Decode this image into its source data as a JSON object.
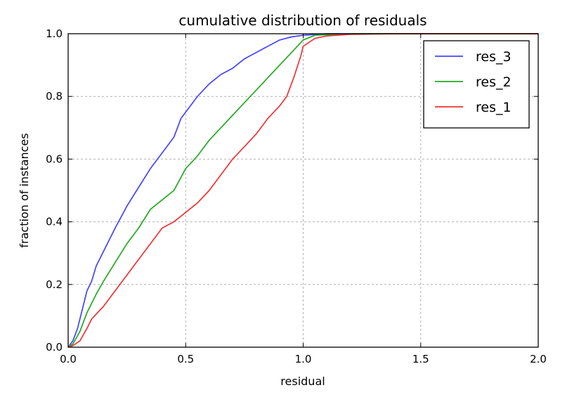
{
  "chart_data": {
    "type": "line",
    "title": "cumulative distribution of residuals",
    "xlabel": "residual",
    "ylabel": "fraction of instances",
    "xlim": [
      0.0,
      2.0
    ],
    "ylim": [
      0.0,
      1.0
    ],
    "xticks": [
      "0.0",
      "0.5",
      "1.0",
      "1.5",
      "2.0"
    ],
    "yticks": [
      "0.0",
      "0.2",
      "0.4",
      "0.6",
      "0.8",
      "1.0"
    ],
    "grid": true,
    "legend_position": "top-right",
    "series": [
      {
        "name": "res_3",
        "color": "#4444ff",
        "points": [
          [
            0,
            0
          ],
          [
            0.02,
            0.02
          ],
          [
            0.04,
            0.06
          ],
          [
            0.06,
            0.12
          ],
          [
            0.08,
            0.18
          ],
          [
            0.1,
            0.21
          ],
          [
            0.12,
            0.26
          ],
          [
            0.14,
            0.29
          ],
          [
            0.16,
            0.32
          ],
          [
            0.18,
            0.35
          ],
          [
            0.2,
            0.38
          ],
          [
            0.25,
            0.45
          ],
          [
            0.3,
            0.51
          ],
          [
            0.35,
            0.57
          ],
          [
            0.4,
            0.62
          ],
          [
            0.45,
            0.67
          ],
          [
            0.48,
            0.73
          ],
          [
            0.5,
            0.75
          ],
          [
            0.55,
            0.8
          ],
          [
            0.6,
            0.84
          ],
          [
            0.65,
            0.87
          ],
          [
            0.7,
            0.89
          ],
          [
            0.75,
            0.92
          ],
          [
            0.8,
            0.94
          ],
          [
            0.85,
            0.96
          ],
          [
            0.9,
            0.98
          ],
          [
            0.95,
            0.99
          ],
          [
            1.0,
            0.995
          ],
          [
            1.1,
            1.0
          ],
          [
            1.3,
            1.0
          ],
          [
            2.0,
            1.0
          ]
        ]
      },
      {
        "name": "res_2",
        "color": "#22aa22",
        "points": [
          [
            0,
            0
          ],
          [
            0.02,
            0.01
          ],
          [
            0.05,
            0.05
          ],
          [
            0.08,
            0.11
          ],
          [
            0.1,
            0.14
          ],
          [
            0.12,
            0.17
          ],
          [
            0.15,
            0.21
          ],
          [
            0.2,
            0.27
          ],
          [
            0.25,
            0.33
          ],
          [
            0.3,
            0.38
          ],
          [
            0.35,
            0.44
          ],
          [
            0.4,
            0.47
          ],
          [
            0.45,
            0.5
          ],
          [
            0.5,
            0.57
          ],
          [
            0.55,
            0.61
          ],
          [
            0.6,
            0.66
          ],
          [
            0.65,
            0.7
          ],
          [
            0.7,
            0.74
          ],
          [
            0.75,
            0.78
          ],
          [
            0.8,
            0.82
          ],
          [
            0.85,
            0.86
          ],
          [
            0.9,
            0.9
          ],
          [
            0.95,
            0.94
          ],
          [
            1.0,
            0.98
          ],
          [
            1.05,
            0.995
          ],
          [
            1.2,
            1.0
          ],
          [
            2.0,
            1.0
          ]
        ]
      },
      {
        "name": "res_1",
        "color": "#ee3333",
        "points": [
          [
            0,
            0
          ],
          [
            0.02,
            0.005
          ],
          [
            0.05,
            0.02
          ],
          [
            0.08,
            0.06
          ],
          [
            0.1,
            0.09
          ],
          [
            0.15,
            0.13
          ],
          [
            0.2,
            0.18
          ],
          [
            0.25,
            0.23
          ],
          [
            0.3,
            0.28
          ],
          [
            0.35,
            0.33
          ],
          [
            0.4,
            0.38
          ],
          [
            0.45,
            0.4
          ],
          [
            0.5,
            0.43
          ],
          [
            0.55,
            0.46
          ],
          [
            0.6,
            0.5
          ],
          [
            0.65,
            0.55
          ],
          [
            0.7,
            0.6
          ],
          [
            0.75,
            0.64
          ],
          [
            0.8,
            0.68
          ],
          [
            0.85,
            0.73
          ],
          [
            0.9,
            0.77
          ],
          [
            0.93,
            0.8
          ],
          [
            0.96,
            0.86
          ],
          [
            0.99,
            0.93
          ],
          [
            1.0,
            0.96
          ],
          [
            1.05,
            0.985
          ],
          [
            1.1,
            0.993
          ],
          [
            1.2,
            0.998
          ],
          [
            1.4,
            1.0
          ],
          [
            2.0,
            1.0
          ]
        ]
      }
    ],
    "legend_order": [
      "res_3",
      "res_2",
      "res_1"
    ]
  }
}
